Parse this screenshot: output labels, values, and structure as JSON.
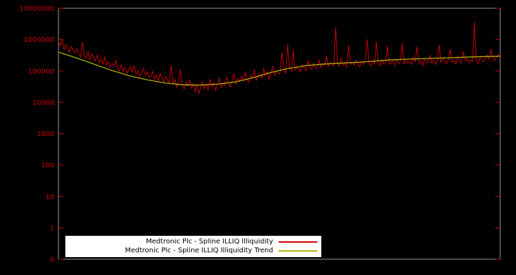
{
  "colors": {
    "background": "#000000",
    "border": "#9a9a9a",
    "tick_text": "#cc0000",
    "series_red": "#cc0000",
    "series_trend": "#b2b200",
    "legend_bg": "#ffffff",
    "legend_text": "#000000"
  },
  "chart_data": {
    "type": "line",
    "title": "",
    "xlabel": "",
    "ylabel": "",
    "grid": false,
    "legend_position": "bottom-left-inside",
    "y_axis": {
      "scale": "log",
      "log_min": -1,
      "log_max": 7,
      "tick_labels": [
        "10000000",
        "1000000",
        "100000",
        "10000",
        "1000",
        "100",
        "10",
        "1",
        "0"
      ]
    },
    "x_axis": {
      "tick_labels": []
    },
    "series": [
      {
        "name": "Medtronic Plc - Spline ILLIQ Illiquidity",
        "color": "#cc0000",
        "values": [
          900000,
          620000,
          1050000,
          480000,
          700000,
          520000,
          390000,
          610000,
          450000,
          380000,
          520000,
          340000,
          280000,
          800000,
          310000,
          250000,
          420000,
          230000,
          350000,
          270000,
          210000,
          330000,
          180000,
          240000,
          160000,
          290000,
          150000,
          200000,
          130000,
          170000,
          140000,
          220000,
          120000,
          100000,
          160000,
          95000,
          130000,
          85000,
          110000,
          140000,
          90000,
          150000,
          78000,
          105000,
          68000,
          88000,
          120000,
          72000,
          95000,
          62000,
          70000,
          98000,
          55000,
          75000,
          48000,
          85000,
          58000,
          45000,
          67000,
          52000,
          42000,
          150000,
          38000,
          55000,
          30000,
          48000,
          110000,
          36000,
          26000,
          44000,
          32000,
          52000,
          28000,
          40000,
          22000,
          35000,
          19000,
          30000,
          46000,
          27000,
          38000,
          25000,
          55000,
          31000,
          42000,
          24000,
          36000,
          60000,
          29000,
          40000,
          35000,
          65000,
          42000,
          30000,
          52000,
          80000,
          38000,
          58000,
          45000,
          70000,
          48000,
          90000,
          55000,
          42000,
          75000,
          60000,
          110000,
          50000,
          68000,
          85000,
          60000,
          120000,
          72000,
          95000,
          55000,
          88000,
          140000,
          70000,
          105000,
          80000,
          95000,
          380000,
          110000,
          85000,
          700000,
          120000,
          98000,
          450000,
          105000,
          130000,
          115000,
          90000,
          160000,
          125000,
          100000,
          210000,
          135000,
          110000,
          180000,
          120000,
          140000,
          230000,
          125000,
          170000,
          150000,
          300000,
          135000,
          190000,
          160000,
          145000,
          2500000,
          180000,
          140000,
          260000,
          155000,
          175000,
          130000,
          650000,
          160000,
          190000,
          150000,
          220000,
          170000,
          135000,
          195000,
          160000,
          240000,
          1000000,
          175000,
          145000,
          200000,
          165000,
          850000,
          180000,
          150000,
          230000,
          170000,
          190000,
          600000,
          160000,
          185000,
          210000,
          155000,
          240000,
          175000,
          195000,
          750000,
          165000,
          220000,
          180000,
          200000,
          160000,
          280000,
          190000,
          580000,
          170000,
          210000,
          150000,
          250000,
          185000,
          195000,
          320000,
          175000,
          230000,
          160000,
          210000,
          680000,
          185000,
          260000,
          200000,
          170000,
          240000,
          500000,
          190000,
          215000,
          165000,
          300000,
          205000,
          180000,
          420000,
          210000,
          250000,
          185000,
          230000,
          195000,
          3500000,
          220000,
          170000,
          280000,
          240000,
          200000,
          260000,
          320000,
          230000,
          500000,
          250000,
          210000,
          290000,
          330000,
          270000
        ]
      },
      {
        "name": "Medtronic Plc - Spline ILLIQ Illiquidity Trend",
        "color": "#b2b200",
        "x": [
          0,
          0.04,
          0.08,
          0.12,
          0.16,
          0.2,
          0.24,
          0.28,
          0.32,
          0.36,
          0.4,
          0.44,
          0.48,
          0.52,
          0.56,
          0.6,
          0.64,
          0.68,
          0.72,
          0.76,
          0.8,
          0.84,
          0.88,
          0.92,
          0.96,
          1
        ],
        "values": [
          398000,
          263000,
          166000,
          105000,
          70800,
          52500,
          41700,
          36300,
          35500,
          38000,
          44700,
          60300,
          89100,
          120000,
          148000,
          166000,
          178000,
          190000,
          209000,
          229000,
          240000,
          251000,
          263000,
          275000,
          288000,
          295000
        ]
      }
    ]
  }
}
